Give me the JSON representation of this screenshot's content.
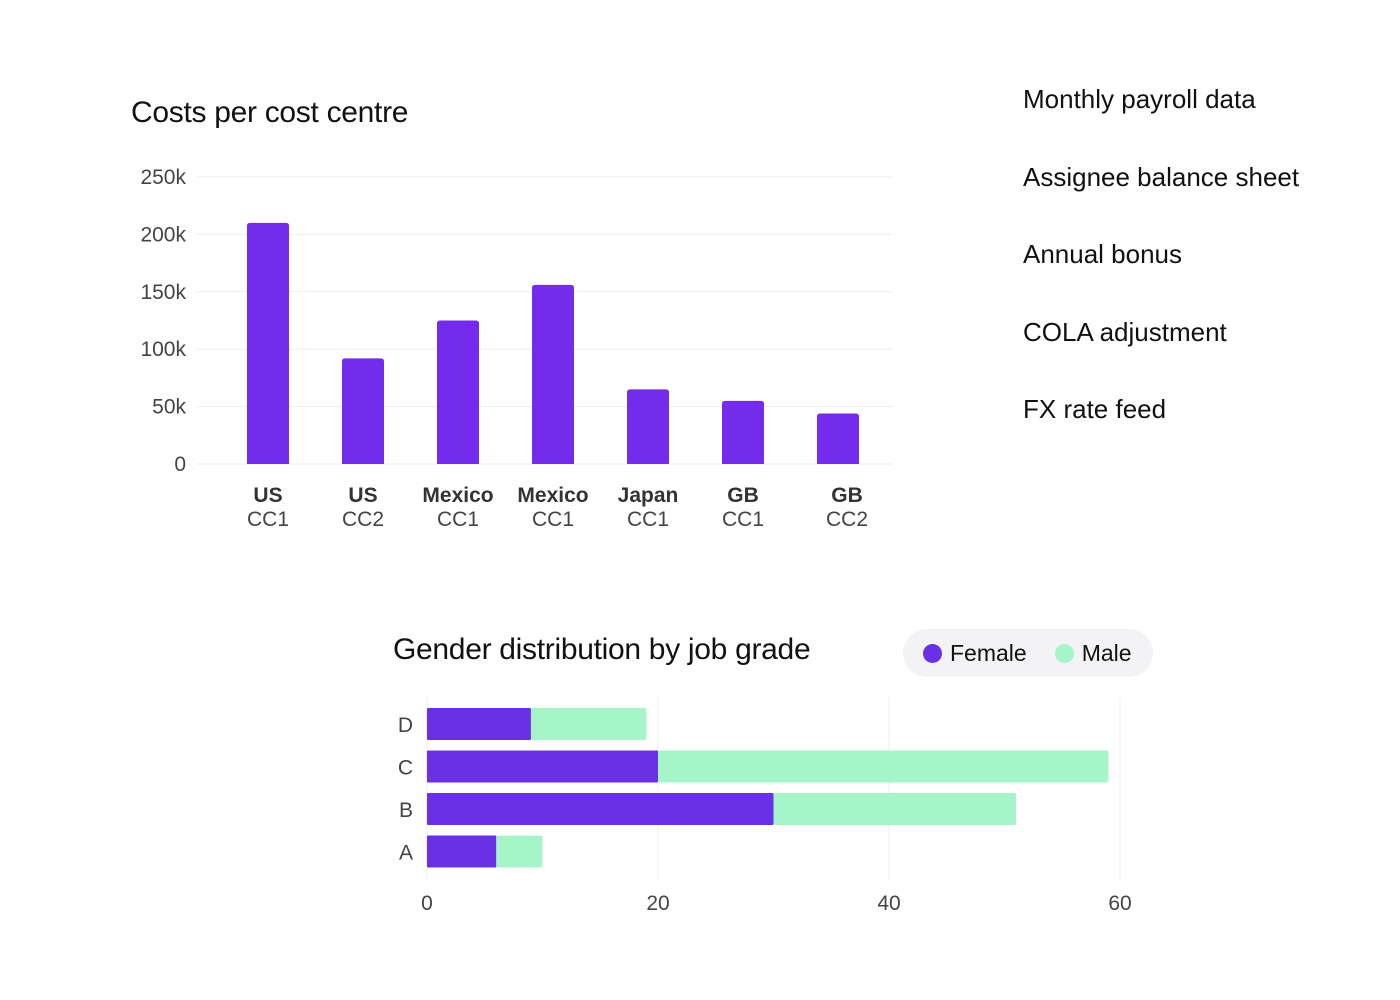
{
  "feeds": {
    "items": [
      "Monthly payroll data",
      "Assignee balance sheet",
      "Annual bonus",
      "COLA adjustment",
      "FX rate feed"
    ]
  },
  "legend": {
    "female_label": "Female",
    "male_label": "Male"
  },
  "colors": {
    "bar_purple": "#742cec",
    "female": "#6a30e6",
    "male": "#a6f5c9",
    "grid": "#ececf0"
  },
  "chart_data": [
    {
      "type": "bar",
      "title": "Costs per cost centre",
      "categories": [
        [
          "US",
          "CC1"
        ],
        [
          "US",
          "CC2"
        ],
        [
          "Mexico",
          "CC1"
        ],
        [
          "Mexico",
          "CC1"
        ],
        [
          "Japan",
          "CC1"
        ],
        [
          "GB",
          "CC1"
        ],
        [
          "GB",
          "CC2"
        ]
      ],
      "values": [
        210000,
        92000,
        125000,
        156000,
        65000,
        55000,
        44000
      ],
      "ylim": [
        0,
        250000
      ],
      "yticks": [
        0,
        50000,
        100000,
        150000,
        200000,
        250000
      ],
      "ytick_labels": [
        "0",
        "50k",
        "100k",
        "150k",
        "200k",
        "250k"
      ],
      "xlabel": "",
      "ylabel": "",
      "grid": true
    },
    {
      "type": "bar",
      "orientation": "horizontal",
      "stacked": true,
      "title": "Gender distribution by job grade",
      "categories": [
        "D",
        "C",
        "B",
        "A"
      ],
      "series": [
        {
          "name": "Female",
          "values": [
            9,
            20,
            30,
            6
          ]
        },
        {
          "name": "Male",
          "values": [
            10,
            39,
            21,
            4
          ]
        }
      ],
      "xlim": [
        0,
        60
      ],
      "xticks": [
        0,
        20,
        40,
        60
      ],
      "xtick_labels": [
        "0",
        "20",
        "40",
        "60"
      ],
      "xlabel": "",
      "ylabel": "",
      "grid": true,
      "legend_position": "top-right"
    }
  ]
}
